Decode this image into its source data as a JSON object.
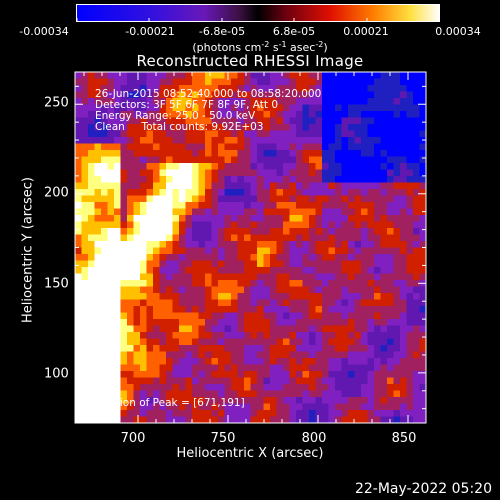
{
  "colorbar": {
    "tick_labels": [
      "-0.00034",
      "-0.00021",
      "-6.8e-05",
      "6.8e-05",
      "0.00021",
      "0.00034"
    ],
    "units_prefix": "(photons cm",
    "units_exp1": "-2",
    "units_mid1": " s",
    "units_exp2": "-1",
    "units_mid2": " asec",
    "units_exp3": "-2",
    "units_suffix": ")"
  },
  "plot": {
    "title": "Reconstructed RHESSI Image",
    "annotations": [
      "26-Jun-2015 08:52:40.000 to 08:58:20.000",
      "Detectors: 3F 5F 6F 7F 8F 9F, Att 0",
      "Energy Range: 25.0 - 50.0 keV",
      "Clean     Total counts: 9.92E+03"
    ],
    "peak_label": "Position of Peak = [671,191]"
  },
  "chart_data": {
    "type": "heatmap",
    "title": "Reconstructed RHESSI Image",
    "xlabel": "Heliocentric X (arcsec)",
    "ylabel": "Heliocentric Y (arcsec)",
    "xlim": [
      665,
      860
    ],
    "ylim": [
      72,
      268
    ],
    "xticks": [
      700,
      750,
      800,
      850
    ],
    "yticks": [
      100,
      150,
      200,
      250
    ],
    "colorbar_range": [
      -0.00034,
      0.00034
    ],
    "peak_position": [
      671,
      191
    ],
    "colormap": [
      "#0000ff",
      "#2020c0",
      "#6018b0",
      "#8020c0",
      "#a02060",
      "#d02000",
      "#ff6000",
      "#ffc000",
      "#ffff80",
      "#ffffff"
    ]
  },
  "footer": {
    "date": "22-May-2022 05:20"
  }
}
